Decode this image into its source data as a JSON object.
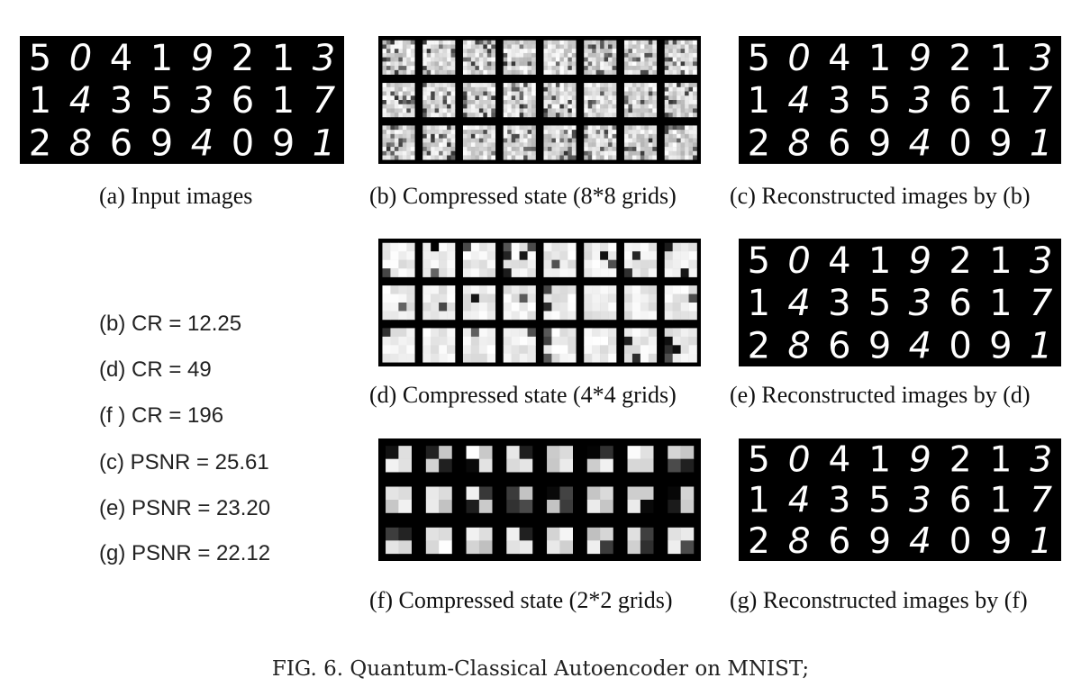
{
  "digit_rows": [
    "50419213",
    "14353617",
    "28694091"
  ],
  "panels": {
    "a": {
      "caption": "(a) Input images",
      "kind": "digits"
    },
    "b": {
      "caption": "(b) Compressed state (8*8 grids)",
      "kind": "grid",
      "grid": 8
    },
    "c": {
      "caption": "(c) Reconstructed images by (b)",
      "kind": "digits"
    },
    "d": {
      "caption": "(d) Compressed state (4*4 grids)",
      "kind": "grid",
      "grid": 4
    },
    "e": {
      "caption": "(e) Reconstructed images by (d)",
      "kind": "digits"
    },
    "f": {
      "caption": "(f) Compressed state (2*2 grids)",
      "kind": "grid",
      "grid": 2
    },
    "g": {
      "caption": "(g) Reconstructed images by (f)",
      "kind": "digits"
    }
  },
  "metrics": [
    "(b) CR = 12.25",
    "(d) CR = 49",
    "(f ) CR = 196",
    "(c) PSNR = 25.61",
    "(e) PSNR = 23.20",
    "(g) PSNR = 22.12"
  ],
  "figure_caption": "FIG. 6.  Quantum-Classical Autoencoder on MNIST;",
  "colors": {
    "panel_bg": "#000000",
    "digit": "#ffffff"
  }
}
